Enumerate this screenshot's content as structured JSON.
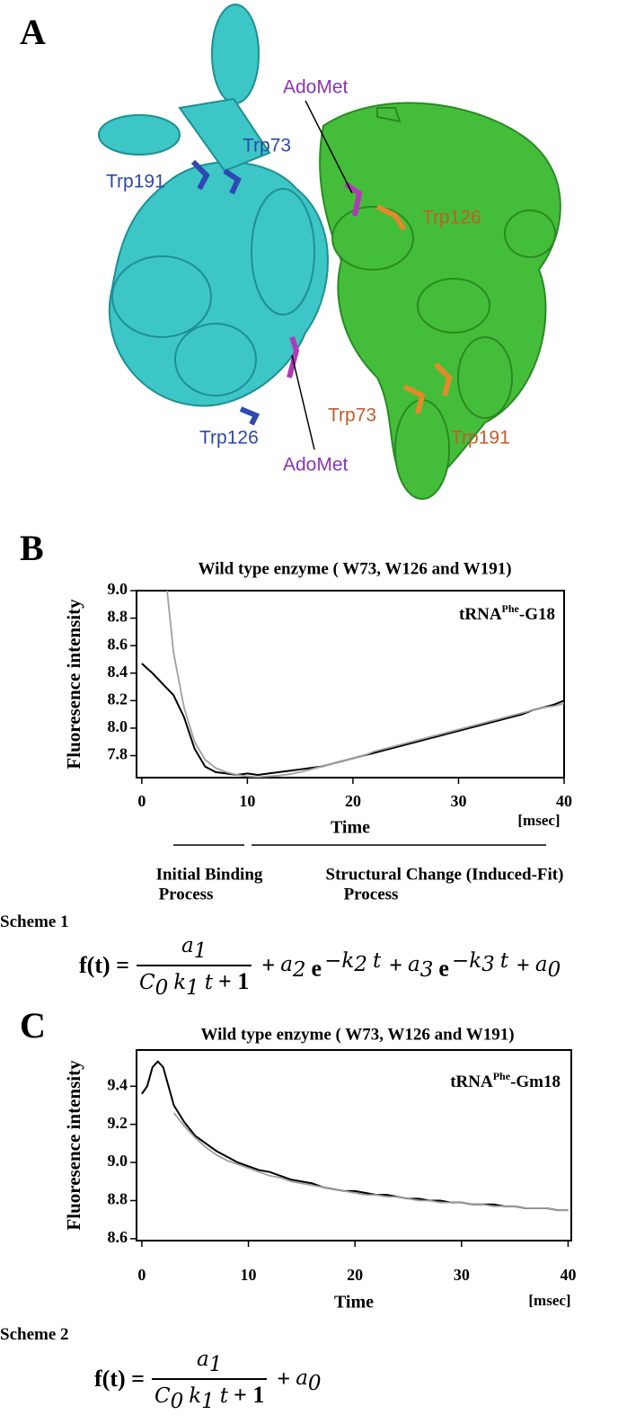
{
  "panel_a": {
    "label": "A",
    "annotations": [
      "AdoMet",
      "Trp73",
      "Trp191",
      "Trp126",
      "Trp73",
      "Trp191",
      "Trp126",
      "AdoMet"
    ]
  },
  "chart_data": [
    {
      "type": "line",
      "panel": "B",
      "title": "Wild type enzyme ( W73, W126 and W191)",
      "annotation": {
        "text": "tRNA",
        "sup": "Phe",
        "suffix": "-G18"
      },
      "x_label": "Time",
      "x_unit": "[msec]",
      "y_label": "Fluoresence intensity",
      "x": [
        0,
        1,
        2,
        3,
        4,
        5,
        6,
        7,
        8,
        9,
        10,
        11,
        12,
        13,
        14,
        15,
        16,
        17,
        18,
        19,
        20,
        21,
        22,
        23,
        24,
        25,
        26,
        27,
        28,
        29,
        30,
        31,
        32,
        33,
        34,
        35,
        36,
        37,
        38,
        39,
        40
      ],
      "series": [
        {
          "color": "#000000",
          "values": [
            8.47,
            8.4,
            8.32,
            8.24,
            8.08,
            7.85,
            7.72,
            7.68,
            7.67,
            7.66,
            7.67,
            7.66,
            7.67,
            7.68,
            7.69,
            7.7,
            7.71,
            7.72,
            7.74,
            7.76,
            7.78,
            7.8,
            7.82,
            7.84,
            7.86,
            7.88,
            7.9,
            7.92,
            7.94,
            7.96,
            7.98,
            8.0,
            8.02,
            8.04,
            8.06,
            8.08,
            8.1,
            8.13,
            8.15,
            8.17,
            8.2
          ]
        },
        {
          "color": "#a0a0a0",
          "values": [
            null,
            null,
            9.3,
            8.55,
            8.15,
            7.9,
            7.77,
            7.71,
            7.68,
            7.66,
            7.65,
            7.645,
            7.65,
            7.655,
            7.665,
            7.68,
            7.7,
            7.72,
            7.74,
            7.76,
            7.78,
            7.8,
            7.83,
            7.85,
            7.87,
            7.89,
            7.91,
            7.93,
            7.95,
            7.97,
            7.99,
            8.01,
            8.03,
            8.05,
            8.07,
            8.09,
            8.11,
            8.13,
            8.15,
            8.16,
            8.18
          ]
        }
      ],
      "xlim": [
        -0.5,
        40
      ],
      "xticks": [
        0,
        10,
        20,
        30,
        40
      ],
      "ylim": [
        7.64,
        9.0
      ],
      "yticks": [
        7.8,
        {
          "value": 8,
          "label": "8.0"
        },
        8.2,
        8.4,
        8.6,
        8.8,
        {
          "value": 9,
          "label": "9.0"
        }
      ],
      "phases": [
        {
          "lines": [
            "Initial Binding",
            "Process"
          ]
        },
        {
          "lines": [
            "Structural Change (Induced-Fit)",
            "Process"
          ]
        }
      ]
    },
    {
      "type": "line",
      "panel": "C",
      "title": "Wild type enzyme ( W73, W126 and W191)",
      "annotation": {
        "text": "tRNA",
        "sup": "Phe",
        "suffix": "-Gm18"
      },
      "x_label": "Time",
      "x_unit": "[msec]",
      "y_label": "Fluoresence intensity",
      "x": [
        0,
        0.5,
        1,
        1.5,
        2,
        2.5,
        3,
        4,
        5,
        6,
        7,
        8,
        9,
        10,
        11,
        12,
        13,
        14,
        15,
        16,
        17,
        18,
        19,
        20,
        21,
        22,
        23,
        24,
        25,
        26,
        27,
        28,
        29,
        30,
        31,
        32,
        33,
        34,
        35,
        36,
        37,
        38,
        39,
        40
      ],
      "series": [
        {
          "color": "#000000",
          "values": [
            9.36,
            9.4,
            9.5,
            9.53,
            9.5,
            9.4,
            9.3,
            9.21,
            9.14,
            9.1,
            9.06,
            9.03,
            9.0,
            8.98,
            8.96,
            8.95,
            8.93,
            8.91,
            8.9,
            8.89,
            8.87,
            8.86,
            8.85,
            8.85,
            8.84,
            8.83,
            8.83,
            8.82,
            8.81,
            8.81,
            8.8,
            8.8,
            8.79,
            8.79,
            8.78,
            8.78,
            8.78,
            8.77,
            8.77,
            8.76,
            8.76,
            8.76,
            8.75,
            8.75
          ]
        },
        {
          "color": "#a0a0a0",
          "values": [
            null,
            null,
            null,
            null,
            null,
            null,
            9.26,
            9.19,
            9.13,
            9.08,
            9.04,
            9.01,
            8.99,
            8.97,
            8.95,
            8.93,
            8.92,
            8.9,
            8.89,
            8.88,
            8.87,
            8.86,
            8.85,
            8.84,
            8.83,
            8.83,
            8.82,
            8.82,
            8.81,
            8.8,
            8.8,
            8.79,
            8.79,
            8.79,
            8.78,
            8.78,
            8.77,
            8.77,
            8.77,
            8.76,
            8.76,
            8.76,
            8.75,
            8.75
          ]
        }
      ],
      "xlim": [
        -0.5,
        40.3
      ],
      "xticks": [
        0,
        10,
        20,
        30,
        40
      ],
      "ylim": [
        8.59,
        9.59
      ],
      "yticks": [
        8.6,
        8.8,
        {
          "value": 9,
          "label": "9.0"
        },
        9.2,
        9.4
      ]
    }
  ],
  "scheme_1": {
    "label": "Scheme 1",
    "lhs": "f(t) =",
    "numerator": [
      {
        "t": "a",
        "sub": "1",
        "italic": true
      }
    ],
    "denominator": [
      {
        "t": "C",
        "sub": "0",
        "italic": true
      },
      {
        "t": "k",
        "sub": "1",
        "italic": true
      },
      {
        "t": "t",
        "italic": true
      },
      {
        "t": "+ 1"
      }
    ],
    "rest": [
      {
        "t": "+"
      },
      {
        "t": "a",
        "sub": "2",
        "italic": true
      },
      {
        "t": "e",
        "sup": [
          {
            "t": "−k",
            "sub": "2",
            "italic": true
          },
          {
            "t": "t",
            "italic": true
          }
        ]
      },
      {
        "t": "+"
      },
      {
        "t": "a",
        "sub": "3",
        "italic": true
      },
      {
        "t": "e",
        "sup": [
          {
            "t": "−k",
            "sub": "3",
            "italic": true
          },
          {
            "t": "t",
            "italic": true
          }
        ]
      },
      {
        "t": "+"
      },
      {
        "t": "a",
        "sub": "0",
        "italic": true
      }
    ]
  },
  "scheme_2": {
    "label": "Scheme 2",
    "lhs": "f(t) =",
    "numerator": [
      {
        "t": "a",
        "sub": "1",
        "italic": true
      }
    ],
    "denominator": [
      {
        "t": "C",
        "sub": "0",
        "italic": true
      },
      {
        "t": "k",
        "sub": "1",
        "italic": true
      },
      {
        "t": "t",
        "italic": true
      },
      {
        "t": "+ 1"
      }
    ],
    "rest": [
      {
        "t": "+"
      },
      {
        "t": "a",
        "sub": "0",
        "italic": true
      }
    ]
  }
}
